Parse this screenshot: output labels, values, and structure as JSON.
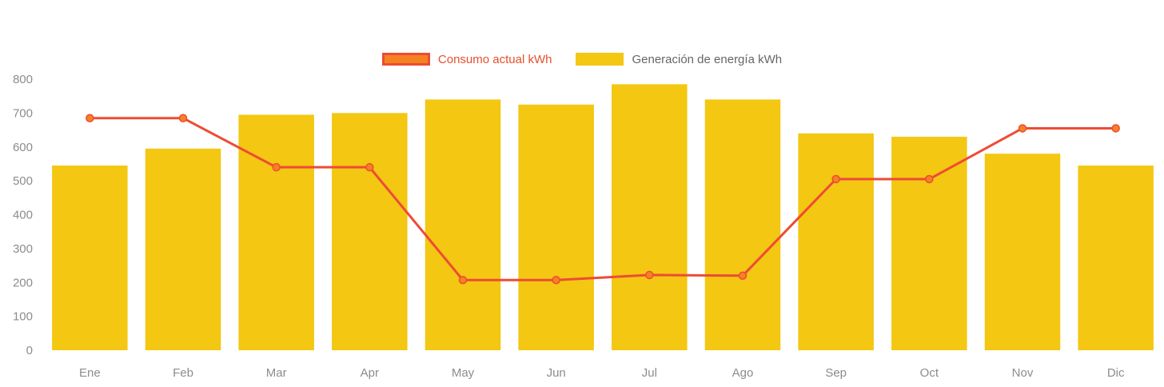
{
  "chart_data": {
    "type": "bar+line",
    "title": "",
    "xlabel": "",
    "ylabel": "",
    "categories": [
      "Ene",
      "Feb",
      "Mar",
      "Apr",
      "May",
      "Jun",
      "Jul",
      "Ago",
      "Sep",
      "Oct",
      "Nov",
      "Dic"
    ],
    "series": [
      {
        "name": "Consumo actual kWh",
        "type": "line",
        "color": "#EE4B35",
        "marker_color": "#F58220",
        "values": [
          685,
          685,
          540,
          540,
          207,
          207,
          222,
          220,
          505,
          505,
          655,
          655
        ]
      },
      {
        "name": "Generación de energía kWh",
        "type": "bar",
        "color": "#F3C712",
        "values": [
          545,
          595,
          695,
          700,
          740,
          725,
          785,
          740,
          640,
          630,
          580,
          545
        ]
      }
    ],
    "ylim": [
      0,
      800
    ],
    "yticks": [
      0,
      100,
      200,
      300,
      400,
      500,
      600,
      700,
      800
    ],
    "grid": false,
    "legend_position": "top-center",
    "axis_text_color": "#8C8C8C",
    "legend_text_colors": {
      "consumo": "#E4502E",
      "generacion": "#666666"
    }
  }
}
